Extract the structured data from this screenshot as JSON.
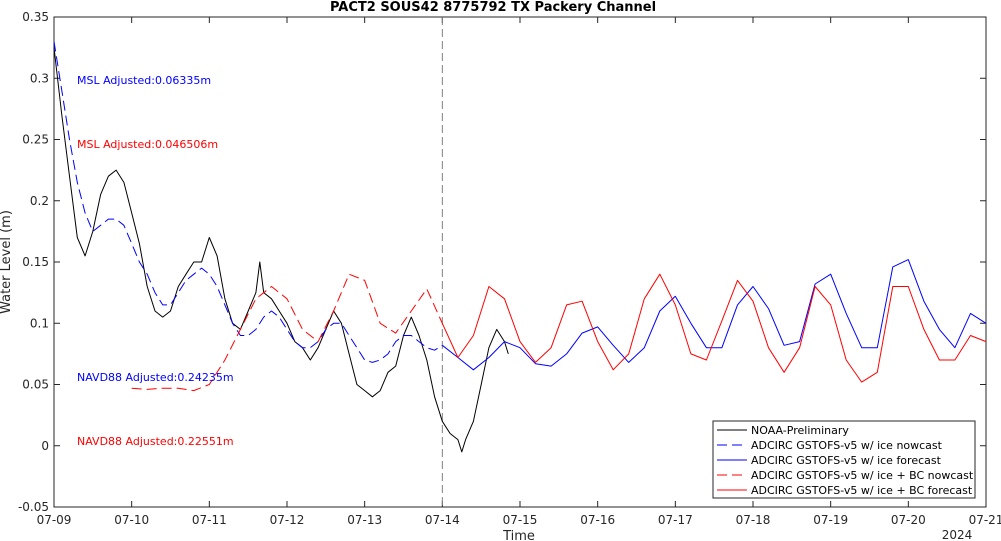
{
  "chart_data": {
    "type": "line",
    "title": "PACT2 SOUS42 8775792 TX Packery Channel",
    "xlabel": "Time",
    "ylabel": "Water Level (m)",
    "year_label": "2024",
    "xlim": [
      "07-09",
      "07-21"
    ],
    "ylim": [
      -0.05,
      0.35
    ],
    "x_ticks": [
      "07-09",
      "07-10",
      "07-11",
      "07-12",
      "07-13",
      "07-14",
      "07-15",
      "07-16",
      "07-17",
      "07-18",
      "07-19",
      "07-20",
      "07-21"
    ],
    "y_ticks": [
      "-0.05",
      "0",
      "0.05",
      "0.1",
      "0.15",
      "0.2",
      "0.25",
      "0.3",
      "0.35"
    ],
    "grid": false,
    "legend_position": "bottom-right",
    "vline_day": 5,
    "colors": {
      "noaa": "#000000",
      "blue": "#0000ff",
      "red": "#ff0000",
      "vline": "#808080"
    },
    "annotations": [
      {
        "text": "MSL Adjusted:0.06335m",
        "color": "#0000ff"
      },
      {
        "text": "MSL Adjusted:0.046506m",
        "color": "#ff0000"
      },
      {
        "text": "NAVD88 Adjusted:0.24235m",
        "color": "#0000ff"
      },
      {
        "text": "NAVD88 Adjusted:0.22551m",
        "color": "#ff0000"
      }
    ],
    "series": [
      {
        "name": "NOAA-Preliminary",
        "style": "solid",
        "color": "#000000",
        "points": [
          [
            0,
            0.325
          ],
          [
            0.1,
            0.27
          ],
          [
            0.2,
            0.22
          ],
          [
            0.3,
            0.17
          ],
          [
            0.4,
            0.155
          ],
          [
            0.5,
            0.175
          ],
          [
            0.6,
            0.205
          ],
          [
            0.7,
            0.22
          ],
          [
            0.8,
            0.225
          ],
          [
            0.9,
            0.215
          ],
          [
            1.0,
            0.19
          ],
          [
            1.1,
            0.165
          ],
          [
            1.2,
            0.13
          ],
          [
            1.3,
            0.11
          ],
          [
            1.4,
            0.105
          ],
          [
            1.5,
            0.11
          ],
          [
            1.6,
            0.13
          ],
          [
            1.7,
            0.14
          ],
          [
            1.8,
            0.15
          ],
          [
            1.9,
            0.15
          ],
          [
            2.0,
            0.17
          ],
          [
            2.1,
            0.155
          ],
          [
            2.2,
            0.12
          ],
          [
            2.3,
            0.1
          ],
          [
            2.4,
            0.095
          ],
          [
            2.5,
            0.11
          ],
          [
            2.6,
            0.125
          ],
          [
            2.65,
            0.15
          ],
          [
            2.7,
            0.125
          ],
          [
            2.8,
            0.12
          ],
          [
            2.9,
            0.11
          ],
          [
            3.0,
            0.1
          ],
          [
            3.1,
            0.085
          ],
          [
            3.2,
            0.08
          ],
          [
            3.3,
            0.07
          ],
          [
            3.4,
            0.08
          ],
          [
            3.5,
            0.095
          ],
          [
            3.6,
            0.11
          ],
          [
            3.7,
            0.1
          ],
          [
            3.8,
            0.075
          ],
          [
            3.9,
            0.05
          ],
          [
            4.0,
            0.045
          ],
          [
            4.1,
            0.04
          ],
          [
            4.2,
            0.045
          ],
          [
            4.3,
            0.06
          ],
          [
            4.4,
            0.065
          ],
          [
            4.5,
            0.09
          ],
          [
            4.6,
            0.105
          ],
          [
            4.7,
            0.09
          ],
          [
            4.8,
            0.07
          ],
          [
            4.9,
            0.04
          ],
          [
            5.0,
            0.02
          ],
          [
            5.1,
            0.01
          ],
          [
            5.2,
            0.005
          ],
          [
            5.25,
            -0.005
          ],
          [
            5.3,
            0.005
          ],
          [
            5.4,
            0.02
          ],
          [
            5.5,
            0.05
          ],
          [
            5.6,
            0.08
          ],
          [
            5.7,
            0.095
          ],
          [
            5.8,
            0.085
          ],
          [
            5.85,
            0.075
          ]
        ]
      },
      {
        "name": "ADCIRC GSTOFS-v5 w/ ice nowcast",
        "style": "dashed",
        "color": "#0000ff",
        "points": [
          [
            0,
            0.33
          ],
          [
            0.1,
            0.29
          ],
          [
            0.2,
            0.25
          ],
          [
            0.3,
            0.215
          ],
          [
            0.4,
            0.19
          ],
          [
            0.5,
            0.175
          ],
          [
            0.6,
            0.18
          ],
          [
            0.7,
            0.185
          ],
          [
            0.8,
            0.185
          ],
          [
            0.9,
            0.18
          ],
          [
            1.0,
            0.165
          ],
          [
            1.1,
            0.15
          ],
          [
            1.2,
            0.14
          ],
          [
            1.3,
            0.125
          ],
          [
            1.4,
            0.115
          ],
          [
            1.5,
            0.115
          ],
          [
            1.6,
            0.125
          ],
          [
            1.7,
            0.135
          ],
          [
            1.8,
            0.14
          ],
          [
            1.9,
            0.145
          ],
          [
            2.0,
            0.14
          ],
          [
            2.1,
            0.13
          ],
          [
            2.2,
            0.115
          ],
          [
            2.3,
            0.1
          ],
          [
            2.4,
            0.09
          ],
          [
            2.5,
            0.09
          ],
          [
            2.6,
            0.095
          ],
          [
            2.7,
            0.105
          ],
          [
            2.8,
            0.11
          ],
          [
            2.9,
            0.105
          ],
          [
            3.0,
            0.095
          ],
          [
            3.1,
            0.085
          ],
          [
            3.2,
            0.08
          ],
          [
            3.3,
            0.08
          ],
          [
            3.4,
            0.085
          ],
          [
            3.5,
            0.095
          ],
          [
            3.6,
            0.1
          ],
          [
            3.7,
            0.1
          ],
          [
            3.8,
            0.09
          ],
          [
            3.9,
            0.08
          ],
          [
            4.0,
            0.07
          ],
          [
            4.1,
            0.068
          ],
          [
            4.2,
            0.07
          ],
          [
            4.3,
            0.075
          ],
          [
            4.4,
            0.085
          ],
          [
            4.5,
            0.09
          ],
          [
            4.6,
            0.09
          ],
          [
            4.7,
            0.085
          ],
          [
            4.8,
            0.08
          ],
          [
            4.9,
            0.078
          ],
          [
            5.0,
            0.082
          ]
        ]
      },
      {
        "name": "ADCIRC GSTOFS-v5 w/ ice forecast",
        "style": "solid",
        "color": "#0000ff",
        "points": [
          [
            5.0,
            0.082
          ],
          [
            5.2,
            0.072
          ],
          [
            5.4,
            0.062
          ],
          [
            5.6,
            0.072
          ],
          [
            5.8,
            0.085
          ],
          [
            6.0,
            0.08
          ],
          [
            6.2,
            0.067
          ],
          [
            6.4,
            0.065
          ],
          [
            6.6,
            0.075
          ],
          [
            6.8,
            0.092
          ],
          [
            7.0,
            0.097
          ],
          [
            7.2,
            0.082
          ],
          [
            7.4,
            0.068
          ],
          [
            7.6,
            0.08
          ],
          [
            7.8,
            0.11
          ],
          [
            8.0,
            0.122
          ],
          [
            8.2,
            0.1
          ],
          [
            8.4,
            0.08
          ],
          [
            8.6,
            0.08
          ],
          [
            8.8,
            0.115
          ],
          [
            9.0,
            0.13
          ],
          [
            9.2,
            0.112
          ],
          [
            9.4,
            0.082
          ],
          [
            9.6,
            0.085
          ],
          [
            9.8,
            0.132
          ],
          [
            10.0,
            0.14
          ],
          [
            10.2,
            0.108
          ],
          [
            10.4,
            0.08
          ],
          [
            10.6,
            0.08
          ],
          [
            10.8,
            0.146
          ],
          [
            11.0,
            0.152
          ],
          [
            11.2,
            0.118
          ],
          [
            11.4,
            0.095
          ],
          [
            11.6,
            0.08
          ],
          [
            11.8,
            0.108
          ],
          [
            12.0,
            0.1
          ]
        ]
      },
      {
        "name": "ADCIRC GSTOFS-v5 w/ ice + BC nowcast",
        "style": "dashed",
        "color": "#ff0000",
        "points": [
          [
            1.0,
            0.047
          ],
          [
            1.2,
            0.046
          ],
          [
            1.4,
            0.047
          ],
          [
            1.6,
            0.047
          ],
          [
            1.8,
            0.045
          ],
          [
            2.0,
            0.05
          ],
          [
            2.2,
            0.07
          ],
          [
            2.4,
            0.095
          ],
          [
            2.6,
            0.12
          ],
          [
            2.8,
            0.13
          ],
          [
            3.0,
            0.12
          ],
          [
            3.2,
            0.095
          ],
          [
            3.4,
            0.085
          ],
          [
            3.6,
            0.11
          ],
          [
            3.8,
            0.14
          ],
          [
            4.0,
            0.135
          ],
          [
            4.2,
            0.1
          ],
          [
            4.4,
            0.092
          ],
          [
            4.6,
            0.11
          ],
          [
            4.8,
            0.128
          ],
          [
            5.0,
            0.1
          ]
        ]
      },
      {
        "name": "ADCIRC GSTOFS-v5 w/ ice + BC forecast",
        "style": "solid",
        "color": "#ff0000",
        "points": [
          [
            5.0,
            0.1
          ],
          [
            5.2,
            0.072
          ],
          [
            5.4,
            0.09
          ],
          [
            5.6,
            0.13
          ],
          [
            5.8,
            0.12
          ],
          [
            6.0,
            0.085
          ],
          [
            6.2,
            0.068
          ],
          [
            6.4,
            0.08
          ],
          [
            6.6,
            0.115
          ],
          [
            6.8,
            0.118
          ],
          [
            7.0,
            0.085
          ],
          [
            7.2,
            0.062
          ],
          [
            7.4,
            0.075
          ],
          [
            7.6,
            0.12
          ],
          [
            7.8,
            0.14
          ],
          [
            8.0,
            0.115
          ],
          [
            8.2,
            0.075
          ],
          [
            8.4,
            0.07
          ],
          [
            8.6,
            0.102
          ],
          [
            8.8,
            0.135
          ],
          [
            9.0,
            0.118
          ],
          [
            9.2,
            0.08
          ],
          [
            9.4,
            0.06
          ],
          [
            9.6,
            0.08
          ],
          [
            9.8,
            0.13
          ],
          [
            10.0,
            0.115
          ],
          [
            10.2,
            0.07
          ],
          [
            10.4,
            0.052
          ],
          [
            10.6,
            0.06
          ],
          [
            10.8,
            0.13
          ],
          [
            11.0,
            0.13
          ],
          [
            11.2,
            0.095
          ],
          [
            11.4,
            0.07
          ],
          [
            11.6,
            0.07
          ],
          [
            11.8,
            0.09
          ],
          [
            12.0,
            0.085
          ]
        ]
      }
    ]
  }
}
